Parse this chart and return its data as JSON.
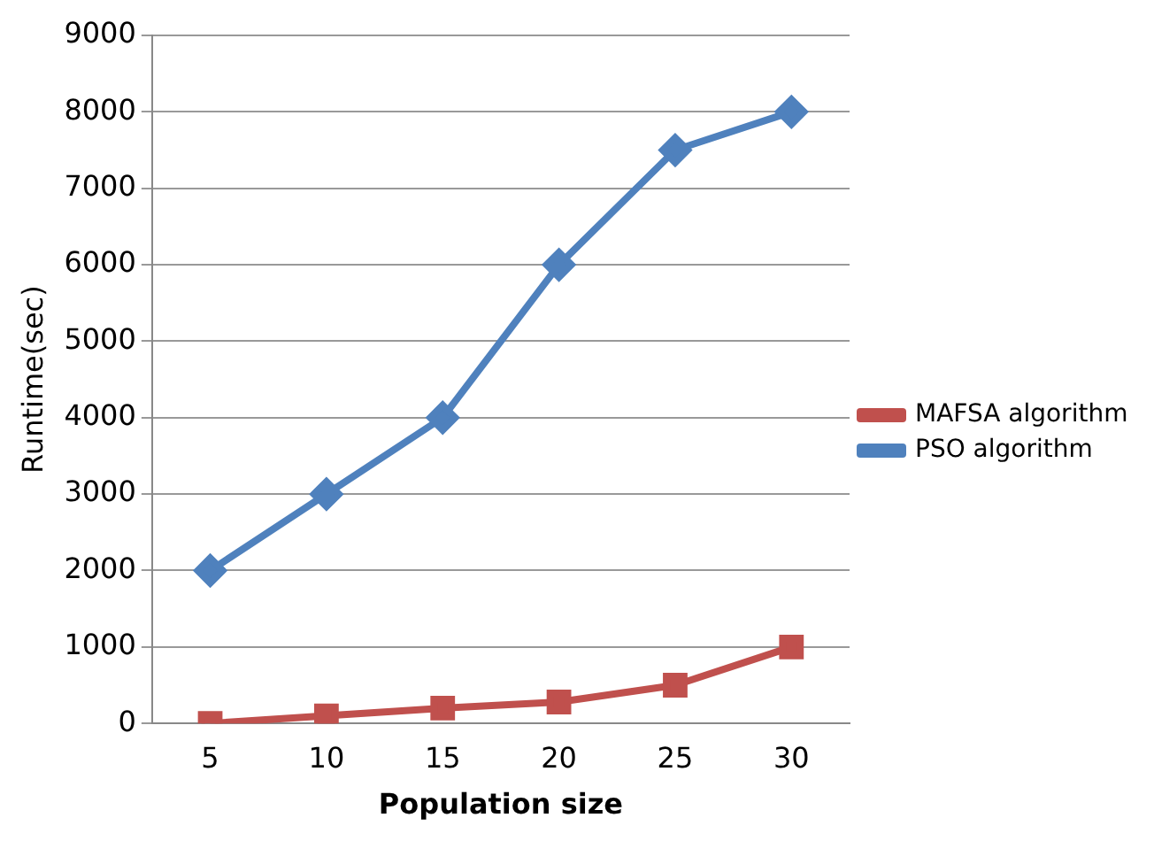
{
  "chart_data": {
    "type": "line",
    "xlabel": "Population size",
    "ylabel": "Runtime(sec)",
    "categories": [
      "5",
      "10",
      "15",
      "20",
      "25",
      "30"
    ],
    "series": [
      {
        "name": "MAFSA algorithm",
        "color": "#c0504d",
        "marker": "square",
        "values": [
          0,
          100,
          200,
          280,
          500,
          1000
        ]
      },
      {
        "name": "PSO algorithm",
        "color": "#4f81bd",
        "marker": "diamond",
        "values": [
          2000,
          3000,
          4000,
          6000,
          7500,
          8000
        ]
      }
    ],
    "ylim": [
      0,
      9000
    ],
    "yticks": [
      0,
      1000,
      2000,
      3000,
      4000,
      5000,
      6000,
      7000,
      8000,
      9000
    ],
    "grid": "y",
    "legend": "right"
  }
}
